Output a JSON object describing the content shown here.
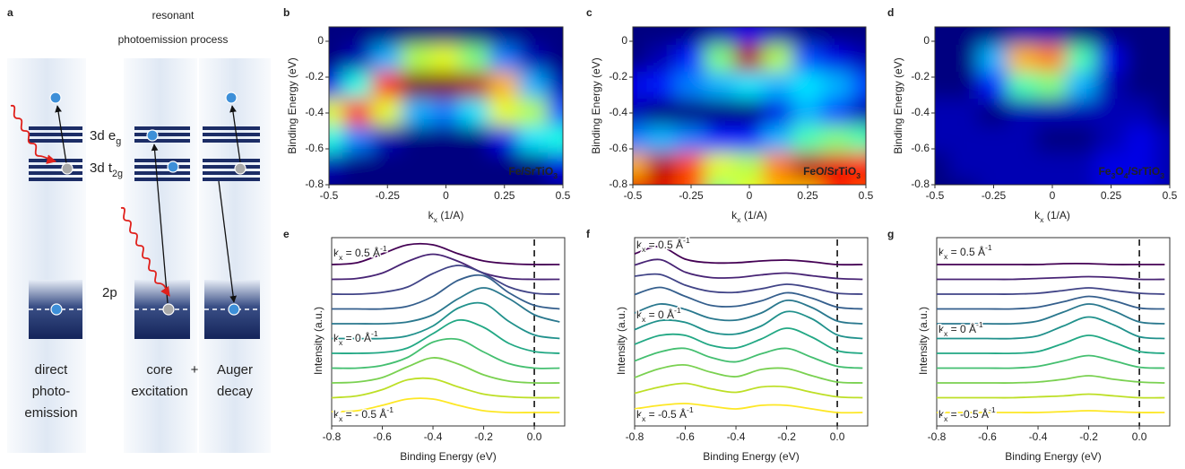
{
  "diagram": {
    "label": "a",
    "title_lines": [
      "resonant",
      "photoemission process"
    ],
    "eg": [
      {
        "text": "3d e"
      },
      {
        "text": "g",
        "sub": true
      }
    ],
    "t2g": [
      {
        "text": "3d t"
      },
      {
        "text": "2g",
        "sub": true
      }
    ],
    "core": "2p",
    "plus": "+",
    "captions": [
      [
        "direct",
        "photo-",
        "emission"
      ],
      [
        "core",
        "excitation"
      ],
      [
        "Auger",
        "decay"
      ]
    ]
  },
  "chart_data": [
    {
      "type": "heatmap",
      "label": "b",
      "colormap": "jet",
      "title": [
        {
          "text": "Fe/SrTiO"
        },
        {
          "text": "3",
          "sub": true
        }
      ],
      "xlabel": [
        {
          "text": "k"
        },
        {
          "text": "x",
          "sub": true
        },
        {
          "text": " (1/A)"
        }
      ],
      "ylabel": "Binding Energy (eV)",
      "x": [
        -0.5,
        -0.375,
        -0.25,
        -0.125,
        0,
        0.125,
        0.25,
        0.375,
        0.5
      ],
      "y": [
        0.05,
        -0.1,
        -0.25,
        -0.4,
        -0.55,
        -0.7,
        -0.85
      ],
      "z": [
        [
          0,
          0,
          0,
          0,
          0,
          0,
          0,
          0,
          0
        ],
        [
          0,
          0.05,
          0.3,
          0.55,
          0.6,
          0.5,
          0.25,
          0.05,
          0
        ],
        [
          0.1,
          0.4,
          0.85,
          1,
          1,
          0.95,
          0.7,
          0.3,
          0.05
        ],
        [
          0.6,
          0.85,
          0.6,
          0.3,
          0.25,
          0.35,
          0.6,
          0.55,
          0.2
        ],
        [
          0.4,
          0.25,
          0.05,
          0,
          0,
          0,
          0.1,
          0.35,
          0.4
        ],
        [
          0.05,
          0,
          0,
          0,
          0,
          0,
          0,
          0,
          0.1
        ],
        [
          0,
          0,
          0,
          0,
          0,
          0,
          0,
          0,
          0
        ]
      ],
      "xlim": [
        -0.5,
        0.5
      ],
      "ylim": [
        -0.8,
        0.08
      ],
      "xticks": [
        -0.5,
        -0.25,
        0,
        0.25,
        0.5
      ],
      "yticks": [
        0,
        -0.2,
        -0.4,
        -0.6,
        -0.8
      ]
    },
    {
      "type": "heatmap",
      "label": "c",
      "colormap": "jet",
      "title": [
        {
          "text": "FeO/SrTiO"
        },
        {
          "text": "3",
          "sub": true
        }
      ],
      "xlabel": [
        {
          "text": "k"
        },
        {
          "text": "x",
          "sub": true
        },
        {
          "text": " (1/A)"
        }
      ],
      "ylabel": "Binding Energy (eV)",
      "x": [
        -0.5,
        -0.375,
        -0.25,
        -0.125,
        0,
        0.125,
        0.25,
        0.375,
        0.5
      ],
      "y": [
        0.05,
        -0.1,
        -0.25,
        -0.4,
        -0.55,
        -0.7,
        -0.85
      ],
      "z": [
        [
          0,
          0,
          0,
          0.05,
          0.1,
          0.05,
          0,
          0,
          0
        ],
        [
          0,
          0.05,
          0.15,
          0.5,
          0.95,
          0.55,
          0.2,
          0.1,
          0.05
        ],
        [
          0.1,
          0.15,
          0.25,
          0.3,
          0.35,
          0.3,
          0.35,
          0.3,
          0.2
        ],
        [
          0.05,
          0,
          0,
          0,
          0,
          0.1,
          0.3,
          0.2,
          0.05
        ],
        [
          0.25,
          0.3,
          0.25,
          0.15,
          0.15,
          0.3,
          0.45,
          0.5,
          0.45
        ],
        [
          0.7,
          0.95,
          0.8,
          0.6,
          0.55,
          0.75,
          0.95,
          0.9,
          0.85
        ],
        [
          0.9,
          0.9,
          0.8,
          0.5,
          0.6,
          0.7,
          0.7,
          0.85,
          0.8
        ]
      ],
      "xlim": [
        -0.5,
        0.5
      ],
      "ylim": [
        -0.8,
        0.08
      ],
      "xticks": [
        -0.5,
        -0.25,
        0,
        0.25,
        0.5
      ],
      "yticks": [
        0,
        -0.2,
        -0.4,
        -0.6,
        -0.8
      ]
    },
    {
      "type": "heatmap",
      "label": "d",
      "colormap": "jet",
      "title": [
        {
          "text": "Fe"
        },
        {
          "text": "3",
          "sub": true
        },
        {
          "text": "O"
        },
        {
          "text": "4",
          "sub": true
        },
        {
          "text": "/SrTiO"
        },
        {
          "text": "3",
          "sub": true
        }
      ],
      "xlabel": [
        {
          "text": "k"
        },
        {
          "text": "x",
          "sub": true
        },
        {
          "text": " (1/A)"
        }
      ],
      "ylabel": "Binding Energy (eV)",
      "x": [
        -0.5,
        -0.375,
        -0.25,
        -0.125,
        0,
        0.125,
        0.25,
        0.375,
        0.5
      ],
      "y": [
        0.05,
        -0.1,
        -0.25,
        -0.4,
        -0.55,
        -0.7,
        -0.85
      ],
      "z": [
        [
          0,
          0,
          0,
          0.05,
          0.05,
          0,
          0,
          0,
          0
        ],
        [
          0,
          0,
          0.3,
          0.7,
          0.75,
          0.45,
          0.1,
          0,
          0
        ],
        [
          0,
          0,
          0.15,
          0.45,
          0.5,
          0.3,
          0.05,
          0,
          0
        ],
        [
          0.05,
          0.05,
          0,
          0.05,
          0.05,
          0.05,
          0.05,
          0.05,
          0
        ],
        [
          0.05,
          0.05,
          0.05,
          0.05,
          0,
          0,
          0.05,
          0.1,
          0.05
        ],
        [
          0,
          0.05,
          0.05,
          0.05,
          0.05,
          0.05,
          0.1,
          0.1,
          0.05
        ],
        [
          0,
          0,
          0.05,
          0.05,
          0.05,
          0.05,
          0.1,
          0.1,
          0.05
        ]
      ],
      "xlim": [
        -0.5,
        0.5
      ],
      "ylim": [
        -0.8,
        0.08
      ],
      "xticks": [
        -0.5,
        -0.25,
        0,
        0.25,
        0.5
      ],
      "yticks": [
        0,
        -0.2,
        -0.4,
        -0.6,
        -0.8
      ]
    },
    {
      "type": "waterfall",
      "label": "e",
      "xlabel": "Binding Energy (eV)",
      "ylabel": "Intensity (a.u.)",
      "x": [
        -0.8,
        -0.7,
        -0.6,
        -0.5,
        -0.4,
        -0.3,
        -0.2,
        -0.1,
        0,
        0.1
      ],
      "xlim": [
        -0.8,
        0.12
      ],
      "xticks": [
        -0.8,
        -0.6,
        -0.4,
        -0.2,
        {
          "value": 0,
          "label": "0.0"
        }
      ],
      "reference_x": 0,
      "annotations": [
        [
          {
            "text": "k"
          },
          {
            "text": "x",
            "sub": true
          },
          {
            "text": " = 0.5 Å"
          },
          {
            "text": "-1",
            "sup": true
          }
        ],
        [
          {
            "text": "k"
          },
          {
            "text": "x",
            "sub": true
          },
          {
            "text": " = 0 Å"
          },
          {
            "text": "-1",
            "sup": true
          }
        ],
        [
          {
            "text": "k"
          },
          {
            "text": "x",
            "sub": true
          },
          {
            "text": " = - 0.5 Å"
          },
          {
            "text": "-1",
            "sup": true
          }
        ]
      ],
      "series": [
        {
          "color": "#440154",
          "values": [
            0,
            0.1,
            0.6,
            1.1,
            1.1,
            0.6,
            0.2,
            0.05,
            0,
            0
          ]
        },
        {
          "color": "#482475",
          "values": [
            0,
            0.05,
            0.35,
            1,
            1.4,
            1,
            0.35,
            0.05,
            0,
            0
          ]
        },
        {
          "color": "#414487",
          "values": [
            0,
            0,
            0.1,
            0.4,
            1.15,
            1.6,
            1.15,
            0.4,
            0.05,
            0
          ]
        },
        {
          "color": "#355f8d",
          "values": [
            0,
            0,
            0,
            0.15,
            0.7,
            1.6,
            1.85,
            0.9,
            0.2,
            0
          ]
        },
        {
          "color": "#2a788e",
          "values": [
            0,
            0,
            0,
            0.1,
            0.5,
            1.4,
            2,
            1.4,
            0.5,
            0.1
          ]
        },
        {
          "color": "#21918c",
          "values": [
            0,
            0,
            0,
            0.15,
            0.7,
            1.7,
            1.95,
            0.95,
            0.2,
            0
          ]
        },
        {
          "color": "#22a884",
          "values": [
            0,
            0,
            0.05,
            0.3,
            1.1,
            1.85,
            1.45,
            0.55,
            0.1,
            0
          ]
        },
        {
          "color": "#44bf70",
          "values": [
            0,
            0,
            0.15,
            0.6,
            1.45,
            1.6,
            0.9,
            0.25,
            0,
            0
          ]
        },
        {
          "color": "#7ad151",
          "values": [
            0,
            0.05,
            0.3,
            0.9,
            1.4,
            1.05,
            0.45,
            0.1,
            0,
            0
          ]
        },
        {
          "color": "#bddf26",
          "values": [
            0,
            0.1,
            0.45,
            1,
            1.05,
            0.6,
            0.2,
            0.05,
            0,
            0
          ]
        },
        {
          "color": "#fde725",
          "values": [
            0.05,
            0.1,
            0.4,
            0.75,
            0.75,
            0.4,
            0.1,
            0,
            0,
            0
          ]
        }
      ]
    },
    {
      "type": "waterfall",
      "label": "f",
      "xlabel": "Binding Energy (eV)",
      "ylabel": "Intensity (a.u.)",
      "x": [
        -0.8,
        -0.7,
        -0.6,
        -0.5,
        -0.4,
        -0.3,
        -0.2,
        -0.1,
        0,
        0.1
      ],
      "xlim": [
        -0.8,
        0.12
      ],
      "xticks": [
        -0.8,
        -0.6,
        -0.4,
        -0.2,
        {
          "value": 0,
          "label": "0.0"
        }
      ],
      "reference_x": 0,
      "annotations": [
        [
          {
            "text": "k"
          },
          {
            "text": "x",
            "sub": true
          },
          {
            "text": " = 0.5 Å"
          },
          {
            "text": "-1",
            "sup": true
          }
        ],
        [
          {
            "text": "k"
          },
          {
            "text": "x",
            "sub": true
          },
          {
            "text": " = 0 Å"
          },
          {
            "text": "-1",
            "sup": true
          }
        ],
        [
          {
            "text": "k"
          },
          {
            "text": "x",
            "sub": true
          },
          {
            "text": " = -0.5 Å"
          },
          {
            "text": "-1",
            "sup": true
          }
        ]
      ],
      "series": [
        {
          "color": "#440154",
          "values": [
            0.6,
            1,
            0.3,
            0.1,
            0.1,
            0.2,
            0.25,
            0.15,
            0,
            0
          ]
        },
        {
          "color": "#482475",
          "values": [
            0.8,
            1.1,
            0.4,
            0.1,
            0.1,
            0.25,
            0.35,
            0.2,
            0.05,
            0
          ]
        },
        {
          "color": "#414487",
          "values": [
            1,
            1.1,
            0.5,
            0.15,
            0.1,
            0.3,
            0.55,
            0.35,
            0.05,
            0
          ]
        },
        {
          "color": "#355f8d",
          "values": [
            0.8,
            1.2,
            0.7,
            0.2,
            0.15,
            0.45,
            0.9,
            0.6,
            0.1,
            0
          ]
        },
        {
          "color": "#2a788e",
          "values": [
            0.6,
            1.1,
            0.8,
            0.3,
            0.2,
            0.6,
            1.3,
            0.9,
            0.15,
            0
          ]
        },
        {
          "color": "#21918c",
          "values": [
            0.5,
            1,
            0.9,
            0.35,
            0.25,
            0.7,
            1.5,
            1.1,
            0.2,
            0
          ]
        },
        {
          "color": "#22a884",
          "values": [
            0.5,
            1,
            1,
            0.45,
            0.3,
            0.8,
            1.4,
            0.9,
            0.15,
            0
          ]
        },
        {
          "color": "#44bf70",
          "values": [
            0.4,
            0.9,
            1.1,
            0.6,
            0.35,
            0.8,
            1.1,
            0.6,
            0.1,
            0
          ]
        },
        {
          "color": "#7ad151",
          "values": [
            0.3,
            0.8,
            1,
            0.6,
            0.35,
            0.75,
            0.8,
            0.4,
            0.05,
            0
          ]
        },
        {
          "color": "#bddf26",
          "values": [
            0.25,
            0.6,
            0.8,
            0.5,
            0.3,
            0.6,
            0.6,
            0.3,
            0.05,
            0
          ]
        },
        {
          "color": "#fde725",
          "values": [
            0.2,
            0.4,
            0.5,
            0.35,
            0.2,
            0.4,
            0.4,
            0.2,
            0,
            0
          ]
        }
      ]
    },
    {
      "type": "waterfall",
      "label": "g",
      "xlabel": "Binding Energy (eV)",
      "ylabel": "Intensity (a.u.)",
      "x": [
        -0.8,
        -0.7,
        -0.6,
        -0.5,
        -0.4,
        -0.3,
        -0.2,
        -0.1,
        0,
        0.1
      ],
      "xlim": [
        -0.8,
        0.12
      ],
      "xticks": [
        -0.8,
        -0.6,
        -0.4,
        -0.2,
        {
          "value": 0,
          "label": "0.0"
        }
      ],
      "reference_x": 0,
      "annotations": [
        [
          {
            "text": "k"
          },
          {
            "text": "x",
            "sub": true
          },
          {
            "text": " = 0.5 Å"
          },
          {
            "text": "-1",
            "sup": true
          }
        ],
        [
          {
            "text": "k"
          },
          {
            "text": "x",
            "sub": true
          },
          {
            "text": " = 0 Å"
          },
          {
            "text": "-1",
            "sup": true
          }
        ],
        [
          {
            "text": "k"
          },
          {
            "text": "x",
            "sub": true
          },
          {
            "text": " = -0.5 Å"
          },
          {
            "text": "-1",
            "sup": true
          }
        ]
      ],
      "series": [
        {
          "color": "#440154",
          "values": [
            0,
            0,
            0,
            0,
            0,
            0.05,
            0.05,
            0,
            0,
            0
          ]
        },
        {
          "color": "#482475",
          "values": [
            0,
            0,
            0,
            0,
            0.05,
            0.1,
            0.15,
            0.1,
            0,
            0
          ]
        },
        {
          "color": "#414487",
          "values": [
            0,
            0,
            0,
            0,
            0.05,
            0.2,
            0.35,
            0.2,
            0.05,
            0
          ]
        },
        {
          "color": "#355f8d",
          "values": [
            0,
            0,
            0,
            0,
            0.1,
            0.4,
            0.7,
            0.45,
            0.05,
            0
          ]
        },
        {
          "color": "#2a788e",
          "values": [
            0,
            0,
            0,
            0,
            0.15,
            0.65,
            1.1,
            0.7,
            0.1,
            0
          ]
        },
        {
          "color": "#21918c",
          "values": [
            0,
            0,
            0,
            0,
            0.15,
            0.7,
            1.2,
            0.75,
            0.1,
            0
          ]
        },
        {
          "color": "#22a884",
          "values": [
            0,
            0,
            0,
            0,
            0.1,
            0.55,
            1,
            0.6,
            0.1,
            0
          ]
        },
        {
          "color": "#44bf70",
          "values": [
            0,
            0,
            0,
            0,
            0.1,
            0.4,
            0.7,
            0.4,
            0.05,
            0
          ]
        },
        {
          "color": "#7ad151",
          "values": [
            0,
            0,
            0,
            0,
            0.05,
            0.2,
            0.4,
            0.2,
            0.05,
            0
          ]
        },
        {
          "color": "#bddf26",
          "values": [
            0,
            0,
            0,
            0,
            0.05,
            0.1,
            0.2,
            0.1,
            0,
            0
          ]
        },
        {
          "color": "#fde725",
          "values": [
            0,
            0,
            0,
            0,
            0,
            0.05,
            0.1,
            0.05,
            0,
            0
          ]
        }
      ]
    }
  ]
}
